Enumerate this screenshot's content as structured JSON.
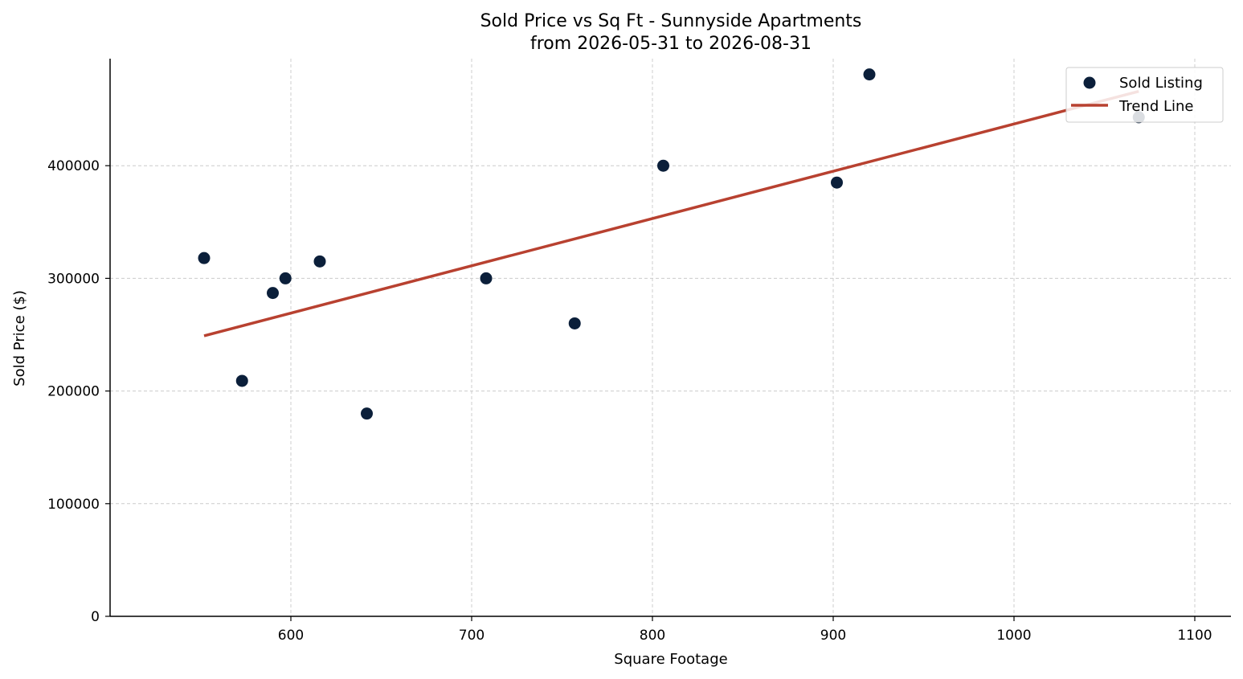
{
  "chart_data": {
    "type": "scatter",
    "title": "Sold Price vs Sq Ft - Sunnyside Apartments",
    "subtitle": "from 2026-05-31 to 2026-08-31",
    "xlabel": "Square Footage",
    "ylabel": "Sold Price ($)",
    "xlim": [
      500,
      1120
    ],
    "ylim": [
      0,
      495000
    ],
    "xticks": [
      600,
      700,
      800,
      900,
      1000,
      1100
    ],
    "yticks": [
      0,
      100000,
      200000,
      300000,
      400000
    ],
    "grid": true,
    "legend_position": "top-right",
    "series": [
      {
        "name": "Sold Listing",
        "kind": "scatter",
        "color": "#0b1f3a",
        "x": [
          552,
          573,
          590,
          597,
          616,
          642,
          708,
          757,
          806,
          902,
          920,
          1069
        ],
        "y": [
          318000,
          209000,
          287000,
          300000,
          315000,
          180000,
          300000,
          260000,
          400000,
          385000,
          481000,
          443000
        ]
      },
      {
        "name": "Trend Line",
        "kind": "line",
        "color": "#b84130",
        "x": [
          552,
          1069
        ],
        "y": [
          249000,
          466000
        ]
      }
    ]
  }
}
